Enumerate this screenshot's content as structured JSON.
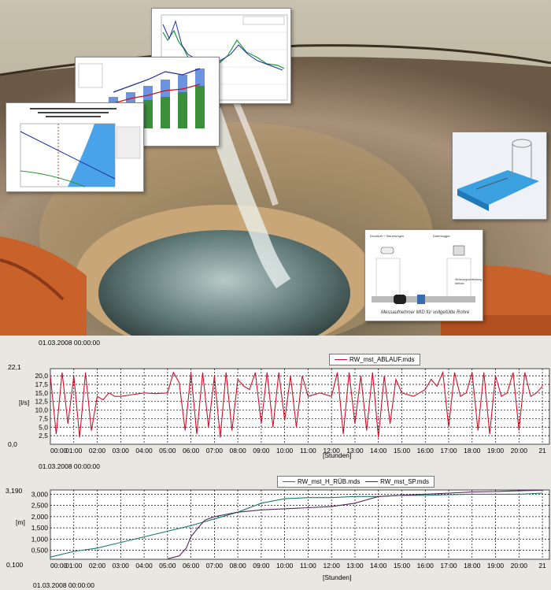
{
  "insets": {
    "flow_meter_caption": "Messaufnehmer MID für vollgefüllte Rohre",
    "flow_meter_labels": [
      "Druckluft + Steuerungen",
      "Datenlogger",
      "Strömungsumlenkung Abfluss"
    ]
  },
  "colors": {
    "red": "#d0102a",
    "teal": "#1a7a6c",
    "purple": "#5a2460"
  },
  "chart_data": [
    {
      "type": "line",
      "timestamp_top": "01.03.2008 00:00:00",
      "timestamp_bottom": "01.03.2008 00:00:00",
      "xlabel": "[Stunden]",
      "ylabel": "[l/s]",
      "y_min_label": "0,0",
      "y_max_label": "22,1",
      "ylim": [
        0,
        22.1
      ],
      "yticks": [
        "20,0",
        "17,5",
        "15,0",
        "12,5",
        "10,0",
        "7,5",
        "5,0",
        "2,5"
      ],
      "ytick_values": [
        20,
        17.5,
        15,
        12.5,
        10,
        7.5,
        5,
        2.5
      ],
      "xticks": [
        "00:00",
        "01:00",
        "02:00",
        "03:00",
        "04:00",
        "05:00",
        "06:00",
        "07:00",
        "08:00",
        "09:00",
        "10:00",
        "11:00",
        "12:00",
        "13:00",
        "14:00",
        "15:00",
        "16:00",
        "17:00",
        "18:00",
        "19:00",
        "20:00",
        "21"
      ],
      "legend": "top-center",
      "series": [
        {
          "name": "RW_mst_ABLAUF.mds",
          "color": "#d0102a",
          "x": [
            0,
            0.25,
            0.5,
            0.75,
            1,
            1.25,
            1.5,
            1.75,
            2,
            2.25,
            2.5,
            2.75,
            3,
            3.5,
            4,
            4.5,
            5,
            5.25,
            5.5,
            5.75,
            6,
            6.25,
            6.5,
            6.75,
            7,
            7.25,
            7.5,
            7.75,
            8,
            8.25,
            8.5,
            8.75,
            9,
            9.25,
            9.5,
            9.75,
            10,
            10.25,
            10.5,
            10.75,
            11,
            11.5,
            12,
            12.25,
            12.5,
            12.75,
            13,
            13.25,
            13.5,
            13.75,
            14,
            14.25,
            14.5,
            14.75,
            15,
            15.5,
            16,
            16.25,
            16.5,
            16.75,
            17,
            17.25,
            17.5,
            17.75,
            18,
            18.25,
            18.5,
            18.75,
            19,
            19.25,
            19.5,
            19.75,
            20,
            20.25,
            20.5,
            20.75,
            21
          ],
          "y": [
            20,
            3,
            21,
            6,
            20,
            2,
            21,
            4,
            14,
            13,
            15,
            14,
            14,
            14.5,
            15,
            14.8,
            15,
            21,
            18,
            4,
            21,
            3,
            21,
            5,
            20,
            2,
            21,
            4,
            19,
            17,
            16,
            21,
            6,
            21,
            5,
            21,
            7,
            20,
            5,
            20,
            14,
            15,
            14,
            21,
            3,
            21,
            6,
            20,
            4,
            21,
            2,
            20,
            6,
            19,
            15,
            14,
            16,
            19,
            17,
            21,
            5,
            21,
            14,
            15,
            21,
            4,
            21,
            3,
            20,
            14,
            15,
            21,
            4,
            21,
            14,
            15,
            17
          ]
        }
      ]
    },
    {
      "type": "line",
      "timestamp_top": "01.03.2008 00:00:00",
      "timestamp_bottom": "01.03.2008 00:00:00",
      "xlabel": "[Stunden]",
      "ylabel": "[m]",
      "y_min_label": "0,100",
      "y_max_label": "3,190",
      "ylim": [
        0.1,
        3.19
      ],
      "yticks": [
        "3,000",
        "2,500",
        "2,000",
        "1,500",
        "1,000",
        "0,500"
      ],
      "ytick_values": [
        3.0,
        2.5,
        2.0,
        1.5,
        1.0,
        0.5
      ],
      "xticks": [
        "00:00",
        "01:00",
        "02:00",
        "03:00",
        "04:00",
        "05:00",
        "06:00",
        "07:00",
        "08:00",
        "09:00",
        "10:00",
        "11:00",
        "12:00",
        "13:00",
        "14:00",
        "15:00",
        "16:00",
        "17:00",
        "18:00",
        "19:00",
        "20:00",
        "21"
      ],
      "legend": "top-right",
      "series": [
        {
          "name": "RW_mst_H_RÜB.mds",
          "color": "#1a7a6c",
          "x": [
            0,
            1,
            2,
            3,
            4,
            5,
            6,
            7,
            8,
            9,
            10,
            11,
            12,
            13,
            14,
            15,
            16,
            17,
            18,
            19,
            20,
            21
          ],
          "y": [
            0.2,
            0.45,
            0.6,
            0.85,
            1.1,
            1.35,
            1.6,
            1.9,
            2.2,
            2.6,
            2.8,
            2.85,
            2.85,
            2.9,
            2.9,
            2.95,
            2.95,
            2.98,
            3.0,
            3.0,
            3.0,
            3.05
          ]
        },
        {
          "name": "RW_mst_SP.mds",
          "color": "#5a2460",
          "x": [
            5,
            5.5,
            5.8,
            6,
            6.3,
            6.6,
            7,
            7.5,
            8,
            8.5,
            9,
            10,
            11,
            12,
            13,
            13.5,
            14,
            15,
            16,
            17,
            18,
            19,
            20,
            21
          ],
          "y": [
            0.12,
            0.25,
            0.6,
            1.1,
            1.5,
            1.85,
            2.0,
            2.1,
            2.2,
            2.25,
            2.3,
            2.35,
            2.4,
            2.45,
            2.6,
            2.75,
            2.9,
            2.95,
            3.0,
            3.05,
            3.1,
            3.12,
            3.15,
            3.18
          ]
        }
      ]
    }
  ]
}
